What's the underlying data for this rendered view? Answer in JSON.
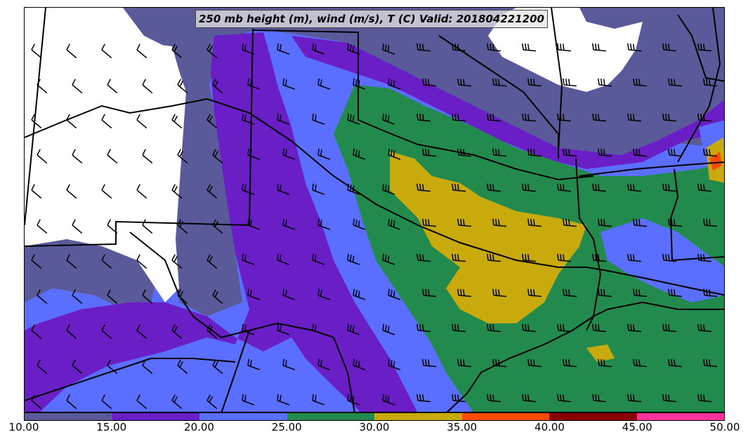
{
  "title": "250 mb height (m), wind (m/s), T (C) Valid: 201804221200",
  "legend": {
    "tick_labels": [
      "10.00",
      "15.00",
      "20.00",
      "25.00",
      "30.00",
      "35.00",
      "40.00",
      "45.00",
      "50.00"
    ],
    "bins": [
      {
        "from": 10,
        "to": 15,
        "color": "#5a5a9a"
      },
      {
        "from": 15,
        "to": 20,
        "color": "#6a1fc6"
      },
      {
        "from": 20,
        "to": 25,
        "color": "#5a6eff"
      },
      {
        "from": 25,
        "to": 30,
        "color": "#238a4e"
      },
      {
        "from": 30,
        "to": 35,
        "color": "#c9aa0c"
      },
      {
        "from": 35,
        "to": 40,
        "color": "#ff4a00"
      },
      {
        "from": 40,
        "to": 45,
        "color": "#8a0000"
      },
      {
        "from": 45,
        "to": 50,
        "color": "#ff3399"
      }
    ]
  },
  "colors": {
    "calm": "#ffffff",
    "boundary": "#000000"
  }
}
